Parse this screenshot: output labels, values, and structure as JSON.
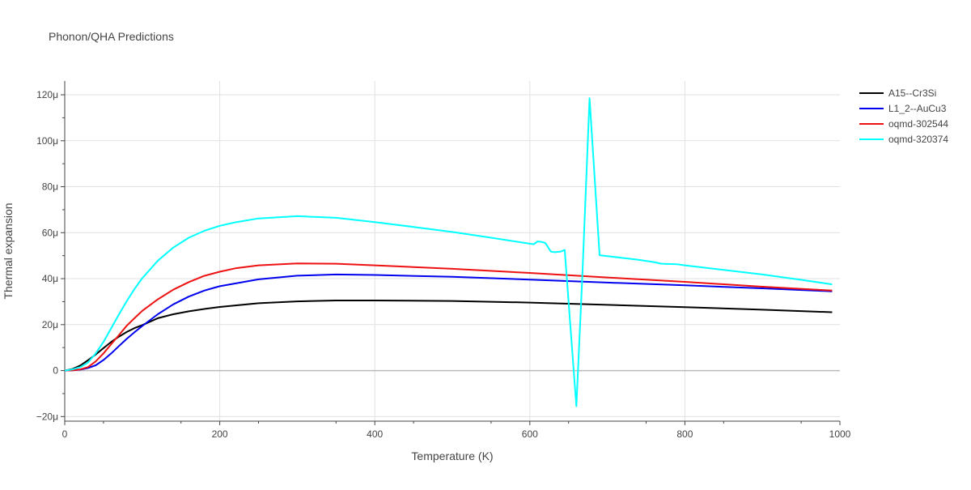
{
  "chart_data": {
    "type": "line",
    "title": "Phonon/QHA Predictions",
    "xlabel": "Temperature (K)",
    "ylabel": "Thermal expansion",
    "xlim": [
      0,
      1000
    ],
    "ylim": [
      -2.2e-05,
      0.000126
    ],
    "x_ticks": [
      0,
      200,
      400,
      600,
      800,
      1000
    ],
    "x_tick_labels": [
      "0",
      "200",
      "400",
      "600",
      "800",
      "1000"
    ],
    "y_ticks": [
      -2e-05,
      0,
      2e-05,
      4e-05,
      6e-05,
      8e-05,
      0.0001,
      0.00012
    ],
    "y_tick_labels": [
      "−20μ",
      "0",
      "20μ",
      "40μ",
      "60μ",
      "80μ",
      "100μ",
      "120μ"
    ],
    "grid": true,
    "legend_position": "top-right",
    "series": [
      {
        "name": "A15--Cr3Si",
        "color": "#000000",
        "x": [
          0,
          10,
          20,
          30,
          40,
          50,
          60,
          70,
          80,
          90,
          100,
          120,
          140,
          160,
          180,
          200,
          250,
          300,
          350,
          400,
          500,
          600,
          700,
          800,
          900,
          990
        ],
        "y": [
          0,
          7e-07,
          2.2e-06,
          4.5e-06,
          7e-06,
          9.8e-06,
          1.25e-05,
          1.48e-05,
          1.68e-05,
          1.85e-05,
          1.98e-05,
          2.28e-05,
          2.45e-05,
          2.58e-05,
          2.68e-05,
          2.77e-05,
          2.93e-05,
          3.01e-05,
          3.05e-05,
          3.05e-05,
          3.03e-05,
          2.96e-05,
          2.86e-05,
          2.76e-05,
          2.65e-05,
          2.54e-05
        ]
      },
      {
        "name": "L1_2--AuCu3",
        "color": "#0000ee",
        "x": [
          0,
          10,
          20,
          30,
          40,
          50,
          60,
          70,
          80,
          90,
          100,
          120,
          140,
          160,
          180,
          200,
          250,
          300,
          350,
          400,
          500,
          600,
          700,
          800,
          900,
          990
        ],
        "y": [
          0,
          1e-07,
          4e-07,
          1.1e-06,
          2.3e-06,
          4.6e-06,
          7.5e-06,
          1.07e-05,
          1.38e-05,
          1.67e-05,
          1.94e-05,
          2.45e-05,
          2.88e-05,
          3.22e-05,
          3.48e-05,
          3.67e-05,
          3.97e-05,
          4.13e-05,
          4.18e-05,
          4.16e-05,
          4.08e-05,
          3.96e-05,
          3.83e-05,
          3.71e-05,
          3.58e-05,
          3.45e-05
        ]
      },
      {
        "name": "oqmd-302544",
        "color": "#ee1111",
        "x": [
          0,
          10,
          20,
          30,
          40,
          50,
          60,
          70,
          80,
          90,
          100,
          120,
          140,
          160,
          180,
          200,
          220,
          250,
          300,
          350,
          400,
          500,
          600,
          700,
          800,
          900,
          990
        ],
        "y": [
          0,
          1e-07,
          5e-07,
          1.5e-06,
          4e-06,
          7.5e-06,
          1.15e-05,
          1.55e-05,
          1.95e-05,
          2.28e-05,
          2.6e-05,
          3.1e-05,
          3.52e-05,
          3.85e-05,
          4.12e-05,
          4.3e-05,
          4.45e-05,
          4.58e-05,
          4.66e-05,
          4.65e-05,
          4.58e-05,
          4.43e-05,
          4.25e-05,
          4.05e-05,
          3.86e-05,
          3.65e-05,
          3.48e-05
        ]
      },
      {
        "name": "oqmd-320374",
        "color": "#00ffff",
        "x": [
          0,
          10,
          20,
          30,
          40,
          50,
          60,
          70,
          80,
          90,
          100,
          120,
          140,
          160,
          180,
          200,
          220,
          250,
          300,
          350,
          400,
          450,
          500,
          550,
          600,
          605,
          610,
          615,
          620,
          627,
          632,
          640,
          645,
          660,
          668,
          677,
          690,
          700,
          720,
          740,
          760,
          770,
          790,
          800,
          850,
          900,
          950,
          990
        ],
        "y": [
          0,
          5e-07,
          1.5e-06,
          3.5e-06,
          7.5e-06,
          1.25e-05,
          1.85e-05,
          2.45e-05,
          3.02e-05,
          3.55e-05,
          4.02e-05,
          4.78e-05,
          5.35e-05,
          5.78e-05,
          6.08e-05,
          6.3e-05,
          6.45e-05,
          6.62e-05,
          6.72e-05,
          6.65e-05,
          6.46e-05,
          6.25e-05,
          6.03e-05,
          5.78e-05,
          5.52e-05,
          5.5e-05,
          5.62e-05,
          5.6e-05,
          5.55e-05,
          5.18e-05,
          5.15e-05,
          5.18e-05,
          5.25e-05,
          -1.55e-05,
          4.3e-05,
          0.0001185,
          5.02e-05,
          4.98e-05,
          4.9e-05,
          4.82e-05,
          4.72e-05,
          4.65e-05,
          4.63e-05,
          4.58e-05,
          4.38e-05,
          4.18e-05,
          3.95e-05,
          3.75e-05
        ]
      }
    ]
  }
}
